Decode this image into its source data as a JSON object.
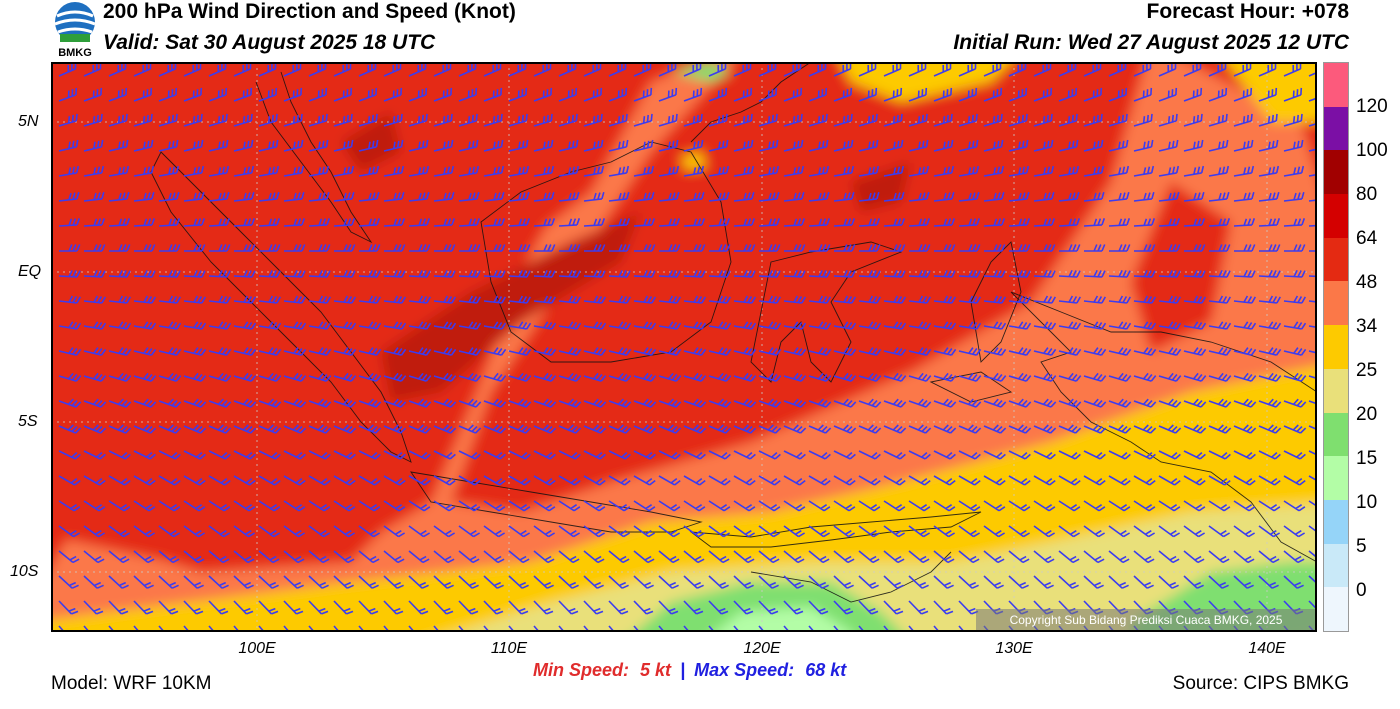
{
  "header": {
    "title": "200 hPa Wind Direction and Speed (Knot)",
    "valid": "Valid: Sat 30 August 2025 18 UTC",
    "forecast_hour": "Forecast Hour: +078",
    "initial_run": "Initial Run: Wed 27 August 2025 12 UTC",
    "logo_text": "BMKG"
  },
  "map": {
    "lat_labels": [
      "5N",
      "EQ",
      "5S",
      "10S"
    ],
    "lon_labels": [
      "100E",
      "110E",
      "120E",
      "130E",
      "140E"
    ],
    "copyright": "Copyright Sub Bidang Prediksi Cuaca BMKG, 2025"
  },
  "colorbar": {
    "labels": [
      "120",
      "100",
      "80",
      "64",
      "48",
      "34",
      "25",
      "20",
      "15",
      "10",
      "5",
      "0"
    ],
    "colors": [
      "#fc5a7c",
      "#7b0fa5",
      "#a10000",
      "#d40000",
      "#e42a12",
      "#fb7848",
      "#fdca00",
      "#e9e07a",
      "#7fdf6f",
      "#b3fda6",
      "#95d4f8",
      "#c9e9f8",
      "#eef6fd"
    ]
  },
  "footer": {
    "model": "Model: WRF 10KM",
    "min_label": "Min Speed:",
    "min_value": "5 kt",
    "separator": "|",
    "max_label": "Max Speed:",
    "max_value": "68 kt",
    "source": "Source: CIPS BMKG"
  }
}
